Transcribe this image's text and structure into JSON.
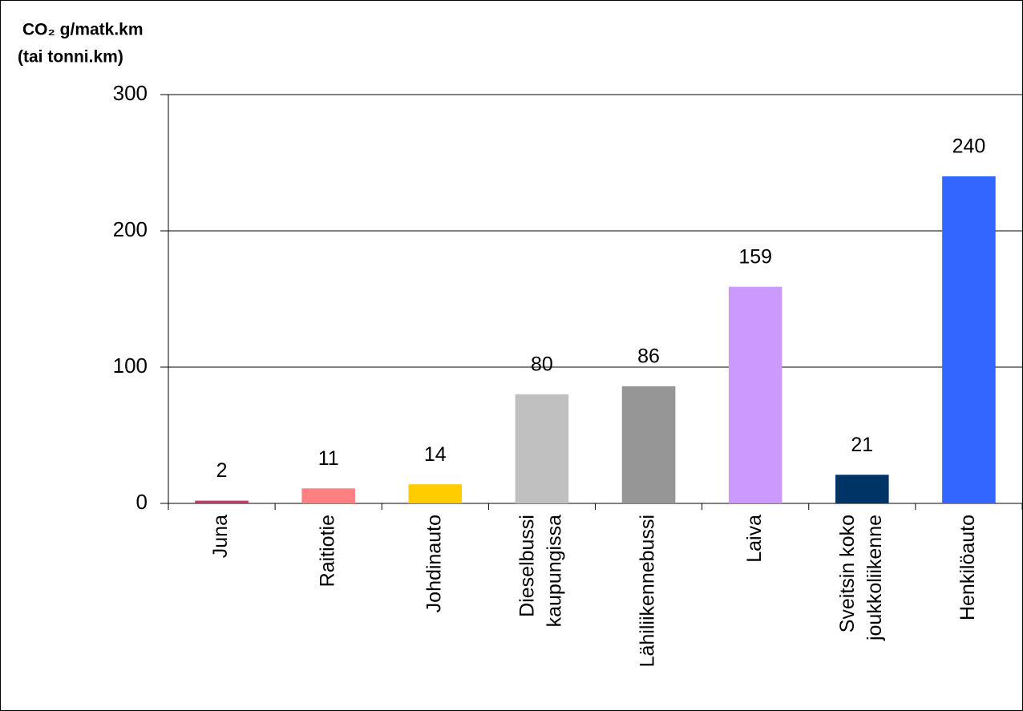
{
  "chart_data": {
    "type": "bar",
    "ylabel": [
      "CO₂ g/matk.km",
      "(tai tonni.km)"
    ],
    "categories": [
      [
        "Juna"
      ],
      [
        "Raitiotie"
      ],
      [
        "Johdinauto"
      ],
      [
        "Dieselbussi",
        "kaupungissa"
      ],
      [
        "Lähiliikennebussi"
      ],
      [
        "Laiva"
      ],
      [
        "Sveitsin koko",
        "joukkoliikenne"
      ],
      [
        "Henkilöauto"
      ]
    ],
    "values": [
      2,
      11,
      14,
      80,
      86,
      159,
      21,
      240
    ],
    "colors": [
      "#cc3366",
      "#ff8080",
      "#ffcc00",
      "#c0c0c0",
      "#969696",
      "#cc99ff",
      "#003366",
      "#3366ff"
    ],
    "ylim": [
      0,
      300
    ],
    "yticks": [
      0,
      100,
      200,
      300
    ],
    "grid": true
  }
}
